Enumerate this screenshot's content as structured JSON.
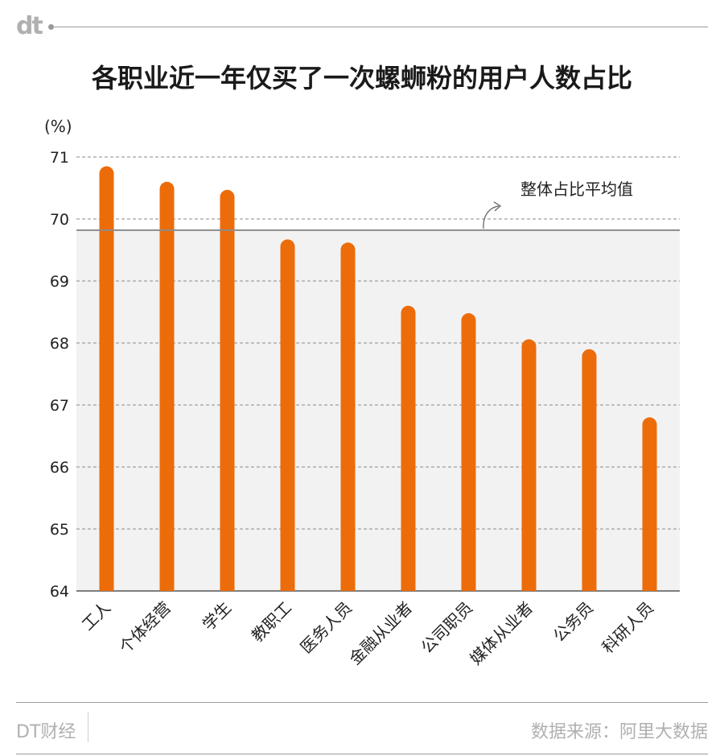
{
  "brand": {
    "logo": "dt",
    "name": "DT财经"
  },
  "title": "各职业近一年仅买了一次螺蛳粉的用户人数占比",
  "source": "数据来源：阿里大数据",
  "colors": {
    "bar": "#ec6c0a",
    "avg_line": "#8c8c8c",
    "grid": "#8a8a8a",
    "shade": "#f2f2f2",
    "text": "#222222",
    "muted": "#b0b0b0"
  },
  "chart_data": {
    "type": "bar",
    "title": "各职业近一年仅买了一次螺蛳粉的用户人数占比",
    "unit": "(%)",
    "categories": [
      "工人",
      "个体经营",
      "学生",
      "教职工",
      "医务人员",
      "金融从业者",
      "公司职员",
      "媒体从业者",
      "公务员",
      "科研人员"
    ],
    "values": [
      70.85,
      70.6,
      70.47,
      69.67,
      69.62,
      68.6,
      68.48,
      68.06,
      67.9,
      66.8
    ],
    "ylim": [
      64,
      71
    ],
    "yticks": [
      64,
      65,
      66,
      67,
      68,
      69,
      70,
      71
    ],
    "reference_line": {
      "label": "整体占比平均值",
      "value": 69.82
    },
    "grid": true
  }
}
